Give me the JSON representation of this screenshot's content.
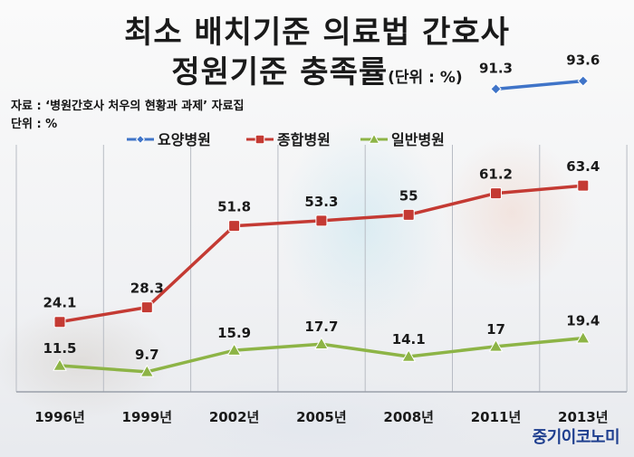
{
  "title_line1": "최소 배치기준 의료법 간호사",
  "title_line2": "정원기준 충족률",
  "title_unit": "(단위 : %)",
  "source": "자료 : ‘병원간호사 처우의 현황과 과제’ 자료집",
  "unit_label": "단위 : %",
  "logo": "중기이코노미",
  "colors": {
    "요양병원": "#3f74c8",
    "종합병원": "#c43a33",
    "일반병원": "#8db446"
  },
  "chart_data": {
    "type": "line",
    "title": "최소 배치기준 의료법 간호사 정원기준 충족률",
    "categories": [
      "1996년",
      "1999년",
      "2002년",
      "2005년",
      "2008년",
      "2011년",
      "2013년"
    ],
    "series": [
      {
        "name": "요양병원",
        "values": [
          null,
          null,
          null,
          null,
          null,
          91.3,
          93.6
        ]
      },
      {
        "name": "종합병원",
        "values": [
          24.1,
          28.3,
          51.8,
          53.3,
          55,
          61.2,
          63.4
        ]
      },
      {
        "name": "일반병원",
        "values": [
          11.5,
          9.7,
          15.9,
          17.7,
          14.1,
          17,
          19.4
        ]
      }
    ],
    "legend": "top"
  }
}
